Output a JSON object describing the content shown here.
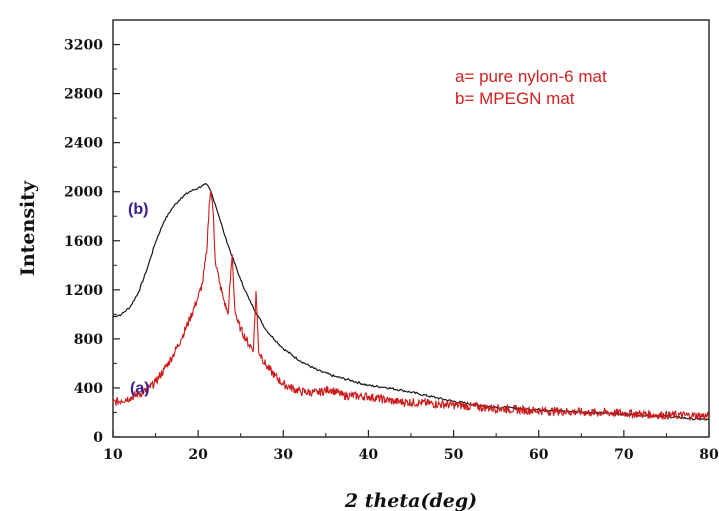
{
  "chart_data": {
    "type": "line",
    "xlabel": "2 theta(deg)",
    "ylabel": "Intensity",
    "xlim": [
      10,
      80
    ],
    "ylim": [
      0,
      3400
    ],
    "xticks": [
      10,
      20,
      30,
      40,
      50,
      60,
      70,
      80
    ],
    "yticks": [
      0,
      400,
      800,
      1200,
      1600,
      2000,
      2400,
      2800,
      3200
    ],
    "grid": false,
    "legend_position": "top-right",
    "legend": [
      "a= pure nylon-6 mat",
      "b= MPEGN mat"
    ],
    "legend_color": "#d22020",
    "curve_label_color": "#3a1c8c",
    "series": [
      {
        "label": "(b)",
        "color": "#1a1a1a",
        "x": [
          10,
          11,
          12,
          13,
          14,
          15,
          16,
          17,
          18,
          19,
          20,
          20.5,
          21,
          21.5,
          22,
          22.5,
          23,
          24,
          25,
          26,
          27,
          28,
          30,
          32,
          34,
          36,
          38,
          40,
          42,
          44,
          46,
          48,
          50,
          54,
          58,
          62,
          66,
          70,
          74,
          78,
          80
        ],
        "y": [
          980,
          1000,
          1060,
          1180,
          1370,
          1590,
          1760,
          1870,
          1950,
          2000,
          2030,
          2050,
          2060,
          2000,
          1900,
          1790,
          1670,
          1470,
          1280,
          1120,
          990,
          870,
          720,
          620,
          545,
          495,
          460,
          420,
          405,
          380,
          350,
          320,
          290,
          250,
          230,
          215,
          200,
          185,
          175,
          150,
          140
        ]
      },
      {
        "label": "(a)",
        "color": "#cc1a1a",
        "x": [
          10,
          11,
          12,
          13,
          14,
          15,
          16,
          17,
          18,
          19,
          20,
          20.5,
          21,
          21.3,
          21.5,
          21.8,
          22,
          22.5,
          23,
          23.5,
          24,
          24.3,
          24.6,
          25,
          26,
          26.5,
          26.8,
          27.1,
          27.5,
          28,
          29,
          30,
          32,
          34,
          35.5,
          37,
          40,
          43,
          46,
          50,
          54,
          58,
          62,
          66,
          70,
          74,
          78,
          80
        ],
        "y": [
          280,
          300,
          320,
          350,
          380,
          450,
          550,
          660,
          800,
          960,
          1140,
          1250,
          1500,
          1900,
          2010,
          1800,
          1450,
          1260,
          1120,
          1000,
          1490,
          1050,
          950,
          880,
          750,
          720,
          1190,
          700,
          650,
          580,
          500,
          430,
          370,
          360,
          390,
          340,
          330,
          290,
          280,
          260,
          240,
          220,
          210,
          200,
          195,
          180,
          175,
          170
        ]
      }
    ]
  }
}
